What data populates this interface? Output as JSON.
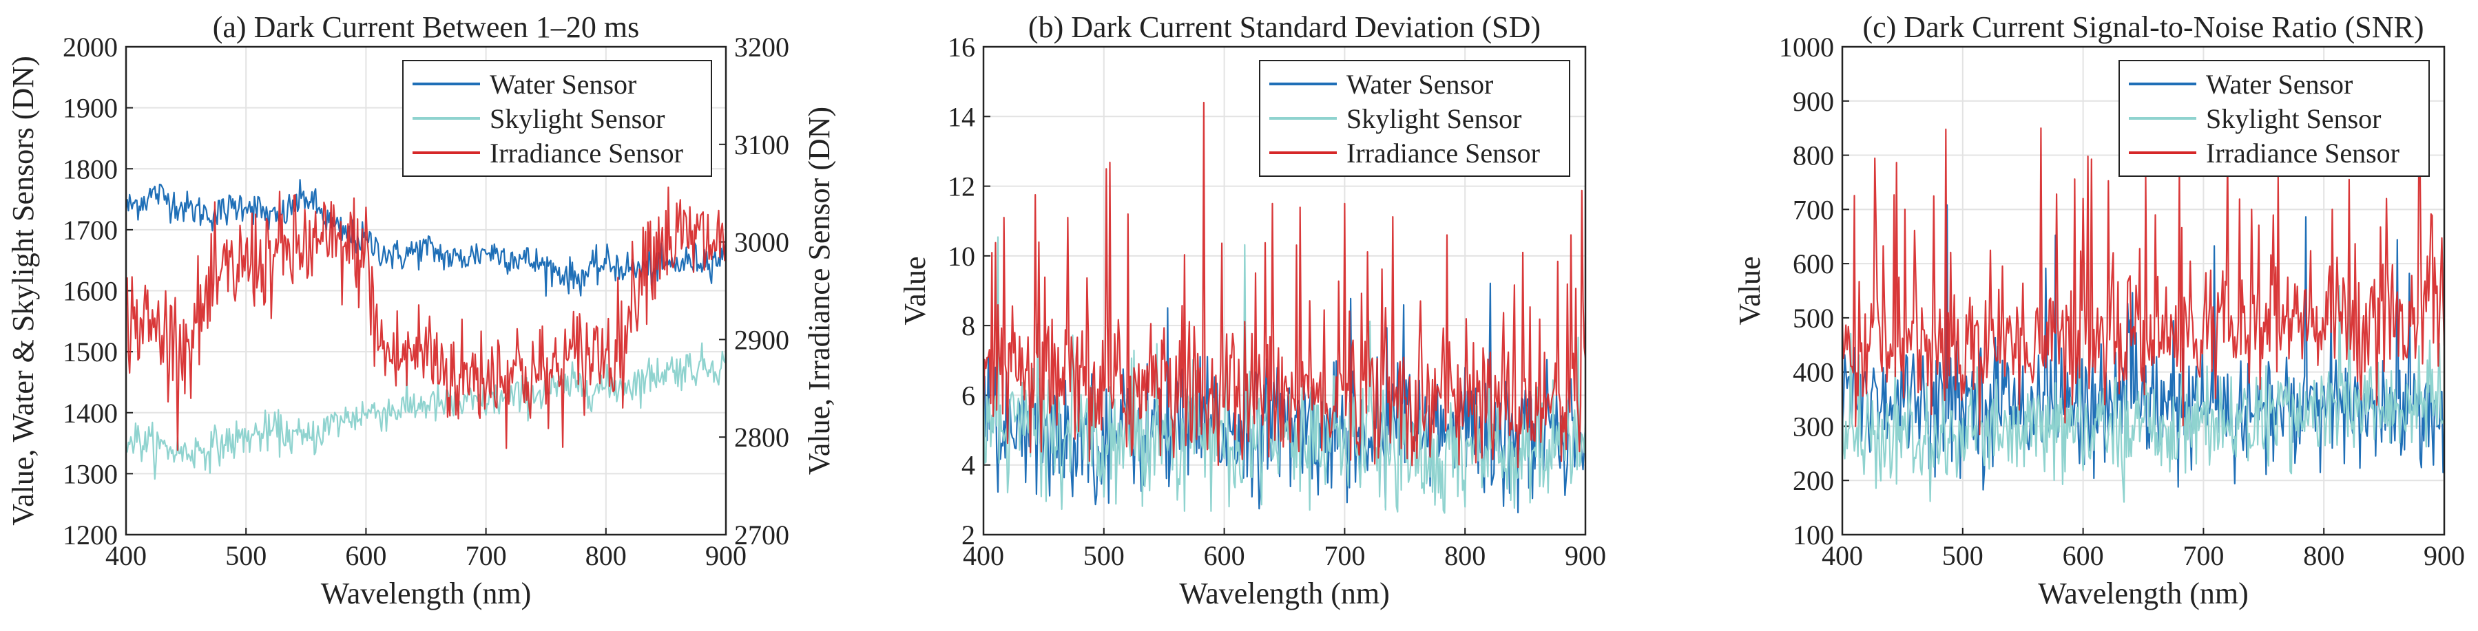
{
  "chart_data": [
    {
      "type": "line",
      "title": "(a) Dark Current Between 1–20 ms",
      "xlabel": "Wavelength (nm)",
      "ylabel": "Value, Water & Skylight Sensors (DN)",
      "ylabel_right": "Value, Irradiance Sensor (DN)",
      "xlim": [
        400,
        900
      ],
      "ylim": [
        1200,
        2000
      ],
      "ylim_right": [
        2700,
        3200
      ],
      "xticks": [
        "400",
        "500",
        "600",
        "700",
        "800",
        "900"
      ],
      "yticks": [
        "1200",
        "1300",
        "1400",
        "1500",
        "1600",
        "1700",
        "1800",
        "1900",
        "2000"
      ],
      "yticks_right": [
        "2700",
        "2800",
        "2900",
        "3000",
        "3100",
        "3200"
      ],
      "legend_position": "top-right",
      "grid": true,
      "series": [
        {
          "name": "Water Sensor",
          "color": "#1f6fb7",
          "axis": "left",
          "x": [
            400,
            425,
            450,
            475,
            500,
            525,
            550,
            575,
            600,
            625,
            650,
            675,
            700,
            725,
            750,
            775,
            800,
            825,
            850,
            875,
            900
          ],
          "values": [
            1735,
            1760,
            1735,
            1725,
            1745,
            1715,
            1755,
            1700,
            1680,
            1655,
            1670,
            1650,
            1665,
            1655,
            1640,
            1620,
            1645,
            1635,
            1640,
            1650,
            1655
          ]
        },
        {
          "name": "Skylight Sensor",
          "color": "#8fd3cf",
          "axis": "left",
          "x": [
            400,
            425,
            450,
            475,
            500,
            525,
            550,
            575,
            600,
            625,
            650,
            675,
            700,
            725,
            750,
            775,
            800,
            825,
            850,
            875,
            900
          ],
          "values": [
            1360,
            1345,
            1335,
            1345,
            1360,
            1370,
            1355,
            1385,
            1400,
            1405,
            1415,
            1410,
            1420,
            1425,
            1435,
            1445,
            1440,
            1450,
            1470,
            1475,
            1480
          ]
        },
        {
          "name": "Irradiance Sensor",
          "color": "#d62728",
          "axis": "right",
          "x": [
            400,
            425,
            450,
            475,
            500,
            525,
            550,
            575,
            600,
            610,
            625,
            650,
            675,
            700,
            725,
            750,
            775,
            800,
            815,
            830,
            850,
            875,
            900
          ],
          "values": [
            2925,
            2910,
            2895,
            2955,
            2980,
            2985,
            2995,
            2995,
            2990,
            2895,
            2880,
            2890,
            2860,
            2865,
            2870,
            2860,
            2880,
            2890,
            2900,
            2985,
            3005,
            3000,
            3000
          ]
        }
      ]
    },
    {
      "type": "line",
      "title": "(b) Dark Current Standard Deviation (SD)",
      "xlabel": "Wavelength (nm)",
      "ylabel": "Value",
      "xlim": [
        400,
        900
      ],
      "ylim": [
        2,
        16
      ],
      "xticks": [
        "400",
        "500",
        "600",
        "700",
        "800",
        "900"
      ],
      "yticks": [
        "2",
        "4",
        "6",
        "8",
        "10",
        "12",
        "14",
        "16"
      ],
      "legend_position": "top-right",
      "grid": true,
      "series": [
        {
          "name": "Water Sensor",
          "color": "#1f6fb7",
          "x": [
            400,
            450,
            500,
            550,
            600,
            650,
            700,
            750,
            800,
            850,
            900
          ],
          "values": [
            5.0,
            4.8,
            4.9,
            5.0,
            5.1,
            5.1,
            5.0,
            4.9,
            5.0,
            5.0,
            5.1
          ]
        },
        {
          "name": "Skylight Sensor",
          "color": "#8fd3cf",
          "x": [
            400,
            450,
            500,
            550,
            600,
            650,
            700,
            750,
            800,
            850,
            900
          ],
          "values": [
            5.2,
            5.1,
            5.0,
            4.9,
            4.8,
            4.6,
            4.5,
            4.4,
            4.4,
            4.3,
            4.2
          ]
        },
        {
          "name": "Irradiance Sensor",
          "color": "#d62728",
          "x": [
            400,
            450,
            500,
            550,
            600,
            650,
            700,
            750,
            800,
            850,
            900
          ],
          "values": [
            6.6,
            6.3,
            6.2,
            6.1,
            6.0,
            6.0,
            5.9,
            5.9,
            5.8,
            5.8,
            5.8
          ],
          "peaks": [
            {
              "x": 417,
              "y": 11.1
            },
            {
              "x": 470,
              "y": 11.1
            },
            {
              "x": 520,
              "y": 11.2
            },
            {
              "x": 583,
              "y": 14.4
            },
            {
              "x": 640,
              "y": 11.5
            },
            {
              "x": 700,
              "y": 11.5
            },
            {
              "x": 785,
              "y": 10.6
            },
            {
              "x": 848,
              "y": 10.1
            },
            {
              "x": 888,
              "y": 10.6
            }
          ]
        }
      ]
    },
    {
      "type": "line",
      "title": "(c) Dark Current Signal-to-Noise Ratio (SNR)",
      "xlabel": "Wavelength (nm)",
      "ylabel": "Value",
      "xlim": [
        400,
        900
      ],
      "ylim": [
        100,
        1000
      ],
      "xticks": [
        "400",
        "500",
        "600",
        "700",
        "800",
        "900"
      ],
      "yticks": [
        "100",
        "200",
        "300",
        "400",
        "500",
        "600",
        "700",
        "800",
        "900",
        "1000"
      ],
      "legend_position": "top-right",
      "grid": true,
      "series": [
        {
          "name": "Water Sensor",
          "color": "#1f6fb7",
          "x": [
            400,
            450,
            500,
            550,
            600,
            650,
            700,
            750,
            800,
            850,
            900
          ],
          "values": [
            360,
            355,
            350,
            345,
            340,
            335,
            335,
            330,
            330,
            335,
            335
          ]
        },
        {
          "name": "Skylight Sensor",
          "color": "#8fd3cf",
          "x": [
            400,
            450,
            500,
            550,
            600,
            650,
            700,
            750,
            800,
            850,
            900
          ],
          "values": [
            270,
            270,
            275,
            285,
            295,
            300,
            305,
            315,
            325,
            335,
            345
          ]
        },
        {
          "name": "Irradiance Sensor",
          "color": "#d62728",
          "x": [
            400,
            450,
            500,
            550,
            600,
            650,
            700,
            750,
            800,
            850,
            900
          ],
          "values": [
            440,
            450,
            455,
            460,
            460,
            465,
            470,
            480,
            490,
            505,
            515
          ],
          "peaks": [
            {
              "x": 452,
              "y": 700
            },
            {
              "x": 565,
              "y": 850
            },
            {
              "x": 600,
              "y": 720
            },
            {
              "x": 740,
              "y": 700
            },
            {
              "x": 762,
              "y": 760
            },
            {
              "x": 807,
              "y": 700
            },
            {
              "x": 852,
              "y": 720
            },
            {
              "x": 880,
              "y": 760
            }
          ]
        }
      ]
    }
  ]
}
